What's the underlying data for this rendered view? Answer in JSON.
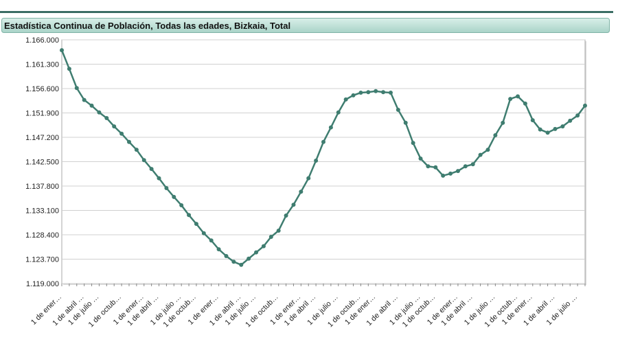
{
  "chart_data": {
    "type": "line",
    "title": "Estadística Continua de Población, Todas las edades, Bizkaia, Total",
    "categories": [
      "1 de ener…",
      null,
      null,
      "1 de abril …",
      null,
      "1 de julio …",
      null,
      null,
      "1 de octub…",
      null,
      null,
      "1 de ener…",
      null,
      "1 de abril …",
      null,
      null,
      "1 de julio …",
      null,
      "1 de octub…",
      null,
      null,
      "1 de ener…",
      null,
      null,
      "1 de abril …",
      null,
      "1 de julio …",
      null,
      null,
      "1 de octub…",
      null,
      null,
      "1 de ener…",
      null,
      "1 de abril …",
      null,
      null,
      "1 de julio …",
      null,
      null,
      "1 de octub…",
      null,
      "1 de ener…",
      null,
      null,
      "1 de abril …",
      null,
      null,
      "1 de julio …",
      null,
      "1 de octub…",
      null,
      null,
      "1 de ener…",
      null,
      "1 de abril …",
      null,
      null,
      "1 de julio …",
      null,
      null,
      "1 de octub…",
      null,
      "1 de ener…",
      null,
      null,
      "1 de abril …",
      null,
      null,
      "1 de julio …",
      null
    ],
    "series": [
      {
        "color": "#3f7d70",
        "values": [
          1164000,
          1160400,
          1156700,
          1154400,
          1153300,
          1152000,
          1150900,
          1149300,
          1147900,
          1146300,
          1144800,
          1142800,
          1141100,
          1139300,
          1137400,
          1135700,
          1134100,
          1132200,
          1130500,
          1128700,
          1127300,
          1125600,
          1124300,
          1123200,
          1122600,
          1123800,
          1125000,
          1126200,
          1128000,
          1129200,
          1132100,
          1134200,
          1136700,
          1139300,
          1142700,
          1146300,
          1149100,
          1152000,
          1154500,
          1155300,
          1155800,
          1155900,
          1156100,
          1155900,
          1155800,
          1152500,
          1150000,
          1146100,
          1143100,
          1141600,
          1141400,
          1139800,
          1140200,
          1140700,
          1141600,
          1142000,
          1143800,
          1144800,
          1147600,
          1150000,
          1154600,
          1155100,
          1153700,
          1150500,
          1148700,
          1148100,
          1148800,
          1149300,
          1150400,
          1151400,
          1153300
        ]
      }
    ],
    "ylim": [
      1119000,
      1166000
    ],
    "yticks": [
      {
        "value": 1119000,
        "label": "1.119.000"
      },
      {
        "value": 1123700,
        "label": "1.123.700"
      },
      {
        "value": 1128400,
        "label": "1.128.400"
      },
      {
        "value": 1133100,
        "label": "1.133.100"
      },
      {
        "value": 1137800,
        "label": "1.137.800"
      },
      {
        "value": 1142500,
        "label": "1.142.500"
      },
      {
        "value": 1147200,
        "label": "1.147.200"
      },
      {
        "value": 1151900,
        "label": "1.151.900"
      },
      {
        "value": 1156600,
        "label": "1.156.600"
      },
      {
        "value": 1161300,
        "label": "1.161.300"
      },
      {
        "value": 1166000,
        "label": "1.166.000"
      }
    ],
    "grid": true
  }
}
